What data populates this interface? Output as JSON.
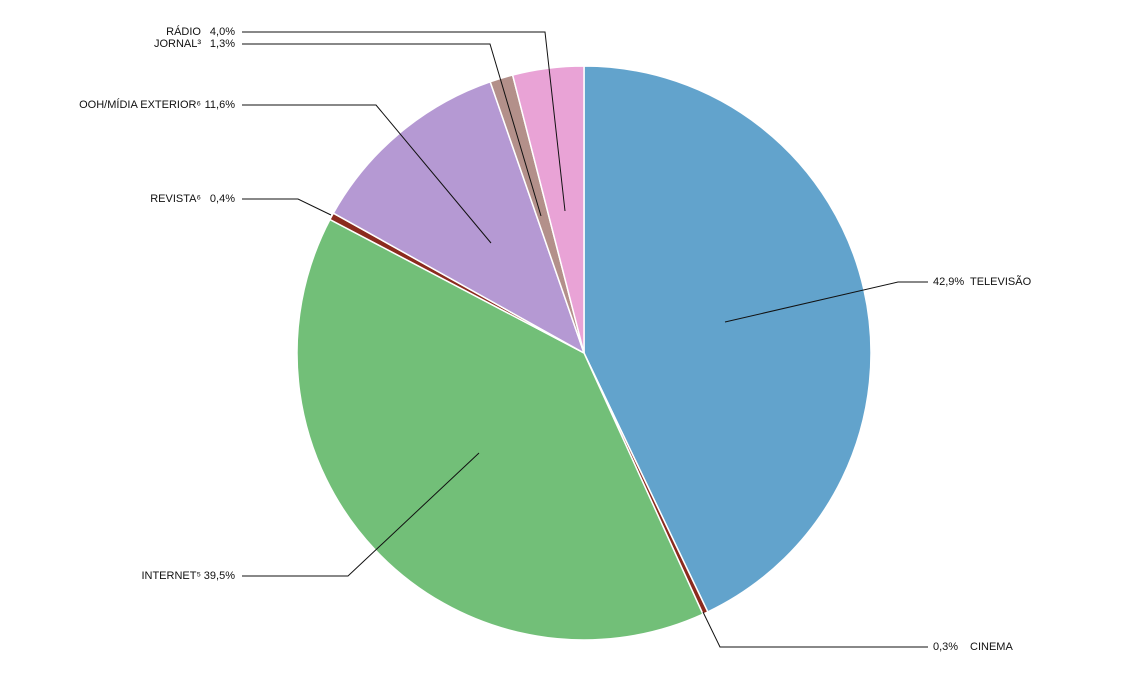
{
  "chart_data": {
    "type": "pie",
    "categories": [
      "TELEVISÃO",
      "CINEMA",
      "INTERNET⁵",
      "REVISTA⁶",
      "OOH/MÍDIA EXTERIOR⁶",
      "JORNAL³",
      "RÁDIO"
    ],
    "values": [
      42.9,
      0.3,
      39.5,
      0.4,
      11.6,
      1.3,
      4.0
    ],
    "value_labels": [
      "42,9%",
      "0,3%",
      "39,5%",
      "0,4%",
      "11,6%",
      "1,3%",
      "4,0%"
    ],
    "colors": [
      "#62a3cc",
      "#8b2a1e",
      "#72bf78",
      "#8b2a1e",
      "#b599d3",
      "#b3908a",
      "#e9a3d6"
    ]
  }
}
